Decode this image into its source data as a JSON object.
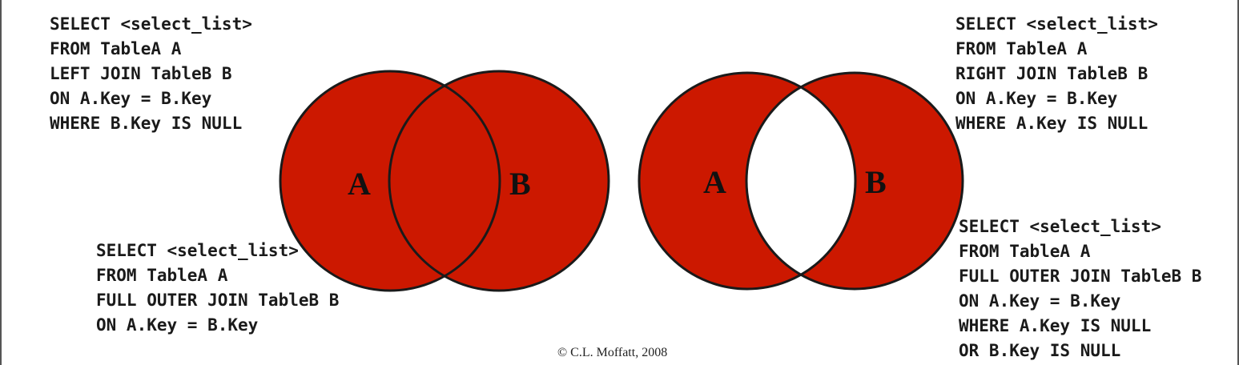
{
  "left_join_query": {
    "lines": [
      "SELECT <select_list>",
      "FROM TableA A",
      "LEFT JOIN TableB B",
      "ON A.Key = B.Key",
      "WHERE B.Key IS NULL"
    ]
  },
  "full_outer_join_query": {
    "lines": [
      "SELECT <select_list>",
      "FROM TableA A",
      "FULL OUTER JOIN TableB B",
      "ON A.Key = B.Key"
    ]
  },
  "right_join_query": {
    "lines": [
      "SELECT <select_list>",
      "FROM TableA A",
      "RIGHT JOIN TableB B",
      "ON A.Key = B.Key",
      "WHERE A.Key IS NULL"
    ]
  },
  "full_outer_join_exclusive_query": {
    "lines": [
      "SELECT <select_list>",
      "FROM TableA A",
      "FULL OUTER JOIN TableB B",
      "ON A.Key = B.Key",
      "WHERE A.Key IS NULL",
      "OR B.Key IS NULL"
    ]
  },
  "venn_full": {
    "label_a": "A",
    "label_b": "B"
  },
  "venn_exclusive": {
    "label_a": "A",
    "label_b": "B"
  },
  "colors": {
    "fill": "#cc1800",
    "stroke": "#1a1a1a",
    "background": "#ffffff"
  },
  "copyright": "© C.L. Moffatt, 2008"
}
